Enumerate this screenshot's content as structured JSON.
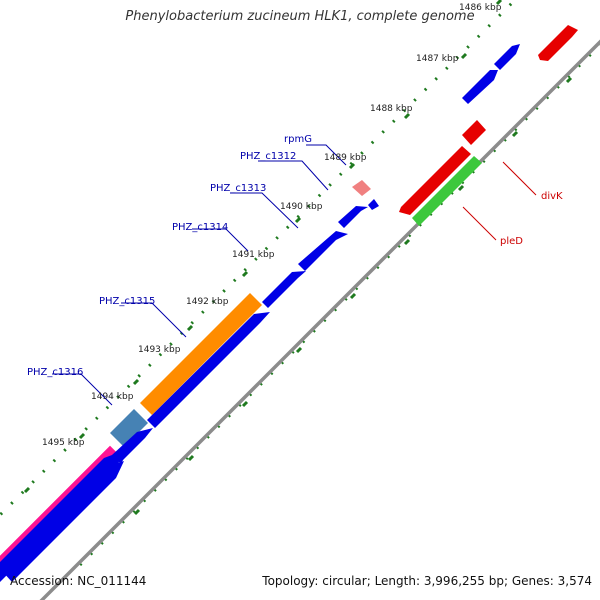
{
  "title": "Phenylobacterium zucineum HLK1, complete genome",
  "footer": {
    "accession_label": "Accession:",
    "accession": "NC_011144",
    "topology_label": "Topology:",
    "topology": "circular",
    "length_label": "Length:",
    "length": "3,996,255 bp",
    "genes_label": "Genes:",
    "genes": "3,574"
  },
  "scale_labels": [
    "1486 kbp",
    "1487 kbp",
    "1488 kbp",
    "1489 kbp",
    "1490 kbp",
    "1491 kbp",
    "1492 kbp",
    "1493 kbp",
    "1494 kbp",
    "1495 kbp"
  ],
  "gene_labels": {
    "rpmG": "rpmG",
    "phz_c1312": "PHZ_c1312",
    "phz_c1313": "PHZ_c1313",
    "phz_c1314": "PHZ_c1314",
    "phz_c1315": "PHZ_c1315",
    "phz_c1316": "PHZ_c1316",
    "divK": "divK",
    "pleD": "pleD"
  },
  "colors": {
    "backbone": "#8c8c8c",
    "ticks": "#1f7a1f",
    "cds": "#0000e6",
    "red": "#e60000",
    "green": "#3cc83c",
    "orange": "#ff8c00",
    "steel": "#4682b4",
    "pink": "#ff1493",
    "light_red": "#f08080",
    "label_blue": "#0000aa",
    "label_red": "#cc0000"
  }
}
